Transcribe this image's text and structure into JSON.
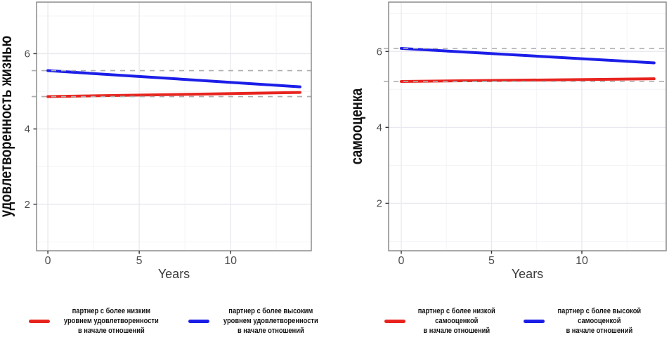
{
  "page": {
    "background": "#ffffff"
  },
  "colors": {
    "red_series": "#e8241f",
    "blue_series": "#1c1ee8",
    "ref_dash": "#adadad",
    "grid_major": "#e9e7ef",
    "grid_minor": "#f4f2f7",
    "panel_border": "#8c8c8c",
    "tick_text": "#4d4d4d"
  },
  "chart_data": [
    {
      "type": "line",
      "ylabel": "удовлетворенность жизнью",
      "xlabel": "Years",
      "x_ticks": [
        0,
        5,
        10
      ],
      "x_tick_labels": [
        "0",
        "5",
        "10"
      ],
      "y_ticks": [
        2,
        4,
        6
      ],
      "y_tick_labels": [
        "2",
        "4",
        "6"
      ],
      "x_minor": [
        2.5,
        7.5,
        12.5
      ],
      "y_minor": [
        1,
        3,
        5,
        7
      ],
      "xlim": [
        -0.62,
        14.42
      ],
      "ylim": [
        0.765,
        7.37
      ],
      "grid": "major+minor",
      "legend_position": "bottom",
      "series": [
        {
          "name": "партнер с более низким уровнем удовлетворенности в начале отношений",
          "color": "#e8241f",
          "x": [
            0,
            13.8
          ],
          "y": [
            4.86,
            4.97
          ]
        },
        {
          "name": "партнер с более высоким уровнем удовлетворенности в начале отношений",
          "color": "#1c1ee8",
          "x": [
            0,
            13.8
          ],
          "y": [
            5.55,
            5.12
          ]
        }
      ],
      "ref_lines": [
        {
          "y": 5.55,
          "style": "dashed",
          "color": "#adadad"
        },
        {
          "y": 4.86,
          "style": "dashed",
          "color": "#adadad"
        }
      ],
      "legend": [
        {
          "color": "#e8241f",
          "lines": [
            "партнер с более низким",
            "уровнем удовлетворенности",
            "в начале отношений"
          ]
        },
        {
          "color": "#1c1ee8",
          "lines": [
            "партнер с более высоким",
            "уровнем удовлетворенности",
            "в начале отношений"
          ]
        }
      ]
    },
    {
      "type": "line",
      "ylabel": "самооценка",
      "xlabel": "Years",
      "x_ticks": [
        0,
        5,
        10
      ],
      "x_tick_labels": [
        "0",
        "5",
        "10"
      ],
      "y_ticks": [
        2,
        4,
        6
      ],
      "y_tick_labels": [
        "2",
        "4",
        "6"
      ],
      "x_minor": [
        2.5,
        7.5,
        12.5
      ],
      "y_minor": [
        1,
        3,
        5,
        7
      ],
      "xlim": [
        -0.7,
        14.67
      ],
      "ylim": [
        0.75,
        7.3
      ],
      "grid": "major+minor",
      "legend_position": "bottom",
      "series": [
        {
          "name": "партнер с более низкой самооценкой в начале отношений",
          "color": "#e8241f",
          "x": [
            0,
            14
          ],
          "y": [
            5.21,
            5.28
          ]
        },
        {
          "name": "партнер с более высокой самооценкой в начале отношений",
          "color": "#1c1ee8",
          "x": [
            0,
            14
          ],
          "y": [
            6.08,
            5.7
          ]
        }
      ],
      "ref_lines": [
        {
          "y": 6.08,
          "style": "dashed",
          "color": "#adadad"
        },
        {
          "y": 5.21,
          "style": "dashed",
          "color": "#adadad"
        }
      ],
      "legend": [
        {
          "color": "#e8241f",
          "lines": [
            "партнер с более низкой",
            "самооценкой",
            "в начале отношений"
          ]
        },
        {
          "color": "#1c1ee8",
          "lines": [
            "партнер с более высокой",
            "самооценкой",
            "в начале отношений"
          ]
        }
      ]
    }
  ]
}
